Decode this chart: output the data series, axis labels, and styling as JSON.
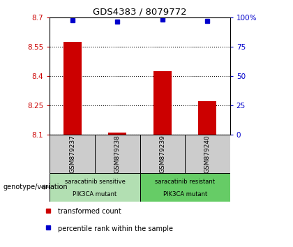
{
  "title": "GDS4383 / 8079772",
  "samples": [
    "GSM879237",
    "GSM879238",
    "GSM879239",
    "GSM879240"
  ],
  "transformed_counts": [
    8.575,
    8.112,
    8.425,
    8.27
  ],
  "percentile_ranks": [
    97.5,
    96.5,
    98.0,
    96.8
  ],
  "ylim_left": [
    8.1,
    8.7
  ],
  "ylim_right": [
    0,
    100
  ],
  "yticks_left": [
    8.1,
    8.25,
    8.4,
    8.55,
    8.7
  ],
  "yticks_right": [
    0,
    25,
    50,
    75,
    100
  ],
  "ytick_labels_left": [
    "8.1",
    "8.25",
    "8.4",
    "8.55",
    "8.7"
  ],
  "ytick_labels_right": [
    "0",
    "25",
    "50",
    "75",
    "100%"
  ],
  "bar_color": "#cc0000",
  "marker_color": "#0000cc",
  "left_tick_color": "#cc0000",
  "right_tick_color": "#0000cc",
  "group1_label_line1": "saracatinib sensitive",
  "group1_label_line2": "PIK3CA mutant",
  "group2_label_line1": "saracatinib resistant",
  "group2_label_line2": "PIK3CA mutant",
  "group1_bg": "#b2dfb2",
  "group2_bg": "#66cc66",
  "sample_bg": "#cccccc",
  "legend_red_label": "transformed count",
  "legend_blue_label": "percentile rank within the sample",
  "genotype_label": "genotype/variation"
}
